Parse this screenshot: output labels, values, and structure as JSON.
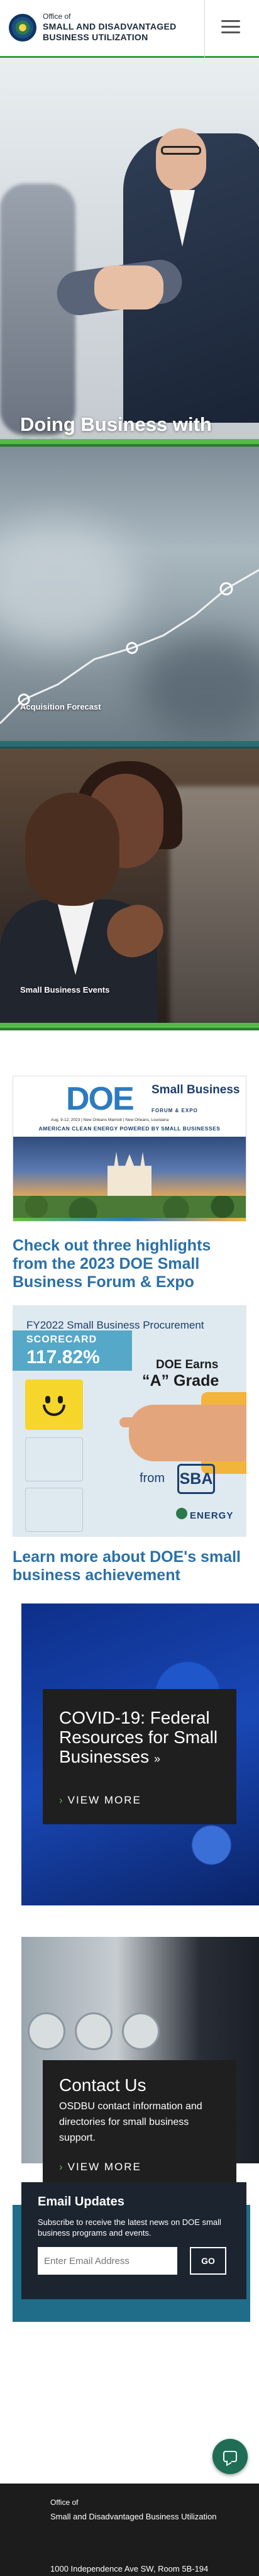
{
  "header": {
    "office_of": "Office of",
    "office_name": "Small and Disadvantaged Business Utilization",
    "menu_icon": "hamburger-menu-icon"
  },
  "heroes": [
    {
      "title": "Doing Business with DOE",
      "bar_color": "#57b947"
    },
    {
      "caption": "Acquisition Forecast",
      "bar_color": "#2a6c72"
    },
    {
      "caption": "Small Business Events",
      "bar_color": "#57b947"
    }
  ],
  "forum_banner": {
    "logo_text": "DOE",
    "small_business": "Small Business",
    "forum_expo": "FORUM & EXPO",
    "date_line": "Aug. 9-12, 2023 | New Orleans Marriott | New Orleans, Louisiana",
    "tagline": "AMERICAN CLEAN ENERGY POWERED BY SMALL BUSINESSES"
  },
  "highlights_link": "Check out three highlights from the 2023 DOE Small Business Forum & Expo",
  "scorecard": {
    "title": "FY2022 Small Business Procurement",
    "label": "SCORECARD",
    "percent": "117.82%",
    "doe_earns": "DOE Earns",
    "grade": "“A” Grade",
    "from": "from",
    "sba": "SBA",
    "energy": "ENERGY"
  },
  "achievement_link": "Learn more about DOE's small business achievement",
  "covid_card": {
    "title": "COVID-19: Federal Resources for Small Businesses",
    "arrow": "»",
    "view_more": "VIEW MORE",
    "chevron": "›"
  },
  "contact_card": {
    "title": "Contact Us",
    "description": "OSDBU contact information and directories for small business support.",
    "view_more": "VIEW MORE",
    "chevron": "›"
  },
  "email_updates": {
    "title": "Email Updates",
    "description": "Subscribe to receive the latest news on DOE small business programs and events.",
    "placeholder": "Enter Email Address",
    "button": "GO"
  },
  "footer": {
    "office_of": "Office of",
    "office_name": "Small and Disadvantaged Business Utilization",
    "address": "1000 Independence Ave SW, Room 5B-194"
  }
}
